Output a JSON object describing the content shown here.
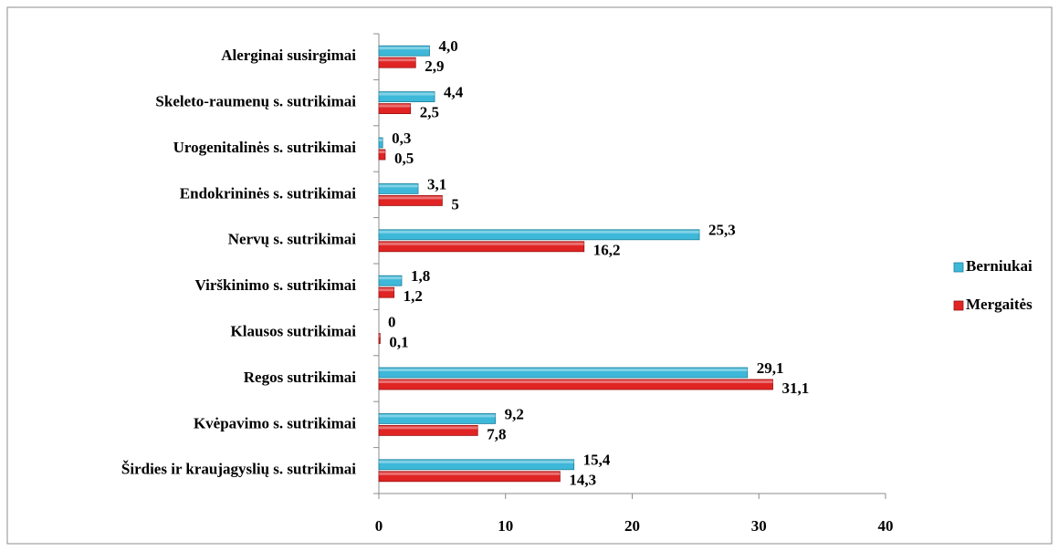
{
  "chart_data": {
    "type": "bar",
    "orientation": "horizontal",
    "categories": [
      "Alerginai susirgimai",
      "Skeleto-raumenų s. sutrikimai",
      "Urogenitalinės s. sutrikimai",
      "Endokrininės s. sutrikimai",
      "Nervų s. sutrikimai",
      "Virškinimo s. sutrikimai",
      "Klausos sutrikimai",
      "Regos sutrikimai",
      "Kvėpavimo s. sutrikimai",
      "Širdies ir kraujagyslių s. sutrikimai"
    ],
    "series": [
      {
        "name": "Berniukai",
        "color": "#3db8d9",
        "values": [
          4.0,
          4.4,
          0.3,
          3.1,
          25.3,
          1.8,
          0,
          29.1,
          9.2,
          15.4
        ],
        "value_labels": [
          "4,0",
          "4,4",
          "0,3",
          "3,1",
          "25,3",
          "1,8",
          "0",
          "29,1",
          "9,2",
          "15,4"
        ]
      },
      {
        "name": "Mergaitės",
        "color": "#e02424",
        "values": [
          2.9,
          2.5,
          0.5,
          5,
          16.2,
          1.2,
          0.1,
          31.1,
          7.8,
          14.3
        ],
        "value_labels": [
          "2,9",
          "2,5",
          "0,5",
          "5",
          "16,2",
          "1,2",
          "0,1",
          "31,1",
          "7,8",
          "14,3"
        ]
      }
    ],
    "xlim": [
      0,
      40
    ],
    "xticks": [
      0,
      10,
      20,
      30,
      40
    ],
    "legend": "right"
  }
}
